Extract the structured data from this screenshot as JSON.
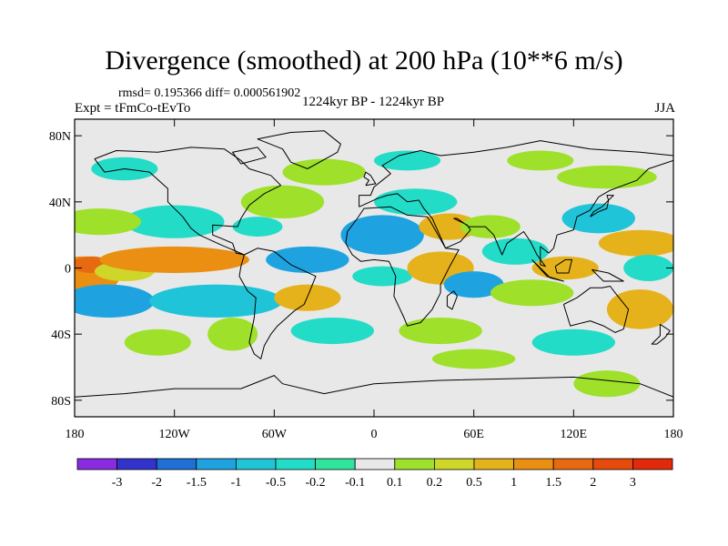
{
  "header": {
    "title": "Divergence (smoothed) at 200 hPa (10**6 m/s)",
    "stats": "rmsd= 0.195366 diff= 0.000561902",
    "experiment": "Expt = tFmCo-tEvTo",
    "period": "1224kyr BP - 1224kyr BP",
    "season": "JJA"
  },
  "axes": {
    "lat_labels": [
      "80N",
      "40N",
      "0",
      "40S",
      "80S"
    ],
    "lon_labels": [
      "180",
      "120W",
      "60W",
      "0",
      "60E",
      "120E",
      "180"
    ]
  },
  "colorbar": {
    "colors": [
      "#8a2be2",
      "#3333cc",
      "#1f6fd6",
      "#1fa3e0",
      "#20c4d8",
      "#22dcc8",
      "#2ee59b",
      "#e8e8e8",
      "#9ee02a",
      "#cfd62a",
      "#e6b21c",
      "#ea8f12",
      "#e86a10",
      "#e64a0c",
      "#e22a0a"
    ],
    "labels": [
      "-3",
      "-2",
      "-1.5",
      "-1",
      "-0.5",
      "-0.2",
      "-0.1",
      "0.1",
      "0.2",
      "0.5",
      "1",
      "1.5",
      "2",
      "3"
    ]
  },
  "map": {
    "background": "#e8e8e8",
    "blobs": [
      {
        "lon": -175,
        "lat": -5,
        "rx": 22,
        "ry": 12,
        "c": 11
      },
      {
        "lon": -170,
        "lat": 2,
        "rx": 12,
        "ry": 5,
        "c": 12
      },
      {
        "lon": -160,
        "lat": -20,
        "rx": 28,
        "ry": 10,
        "c": 3
      },
      {
        "lon": -150,
        "lat": -2,
        "rx": 18,
        "ry": 6,
        "c": 9
      },
      {
        "lon": -120,
        "lat": 5,
        "rx": 45,
        "ry": 8,
        "c": 11
      },
      {
        "lon": -95,
        "lat": -20,
        "rx": 40,
        "ry": 10,
        "c": 4
      },
      {
        "lon": -120,
        "lat": 28,
        "rx": 30,
        "ry": 10,
        "c": 5
      },
      {
        "lon": -165,
        "lat": 28,
        "rx": 25,
        "ry": 8,
        "c": 8
      },
      {
        "lon": -130,
        "lat": -45,
        "rx": 20,
        "ry": 8,
        "c": 8
      },
      {
        "lon": -85,
        "lat": -40,
        "rx": 15,
        "ry": 10,
        "c": 8
      },
      {
        "lon": -55,
        "lat": 40,
        "rx": 25,
        "ry": 10,
        "c": 8
      },
      {
        "lon": -70,
        "lat": 25,
        "rx": 15,
        "ry": 6,
        "c": 5
      },
      {
        "lon": -40,
        "lat": 5,
        "rx": 25,
        "ry": 8,
        "c": 3
      },
      {
        "lon": -40,
        "lat": -18,
        "rx": 20,
        "ry": 8,
        "c": 10
      },
      {
        "lon": -25,
        "lat": -38,
        "rx": 25,
        "ry": 8,
        "c": 5
      },
      {
        "lon": -30,
        "lat": 58,
        "rx": 25,
        "ry": 8,
        "c": 8
      },
      {
        "lon": 5,
        "lat": 20,
        "rx": 25,
        "ry": 12,
        "c": 3
      },
      {
        "lon": 5,
        "lat": -5,
        "rx": 18,
        "ry": 6,
        "c": 5
      },
      {
        "lon": 25,
        "lat": 40,
        "rx": 25,
        "ry": 8,
        "c": 5
      },
      {
        "lon": 45,
        "lat": 25,
        "rx": 18,
        "ry": 8,
        "c": 10
      },
      {
        "lon": 40,
        "lat": 0,
        "rx": 20,
        "ry": 10,
        "c": 10
      },
      {
        "lon": 60,
        "lat": -10,
        "rx": 18,
        "ry": 8,
        "c": 3
      },
      {
        "lon": 40,
        "lat": -38,
        "rx": 25,
        "ry": 8,
        "c": 8
      },
      {
        "lon": 70,
        "lat": 25,
        "rx": 18,
        "ry": 7,
        "c": 8
      },
      {
        "lon": 85,
        "lat": 10,
        "rx": 20,
        "ry": 8,
        "c": 5
      },
      {
        "lon": 95,
        "lat": -15,
        "rx": 25,
        "ry": 8,
        "c": 8
      },
      {
        "lon": 115,
        "lat": 0,
        "rx": 20,
        "ry": 7,
        "c": 10
      },
      {
        "lon": 135,
        "lat": 30,
        "rx": 22,
        "ry": 9,
        "c": 4
      },
      {
        "lon": 160,
        "lat": 15,
        "rx": 25,
        "ry": 8,
        "c": 10
      },
      {
        "lon": 165,
        "lat": 0,
        "rx": 15,
        "ry": 8,
        "c": 5
      },
      {
        "lon": 160,
        "lat": -25,
        "rx": 20,
        "ry": 12,
        "c": 10
      },
      {
        "lon": 120,
        "lat": -45,
        "rx": 25,
        "ry": 8,
        "c": 5
      },
      {
        "lon": 140,
        "lat": 55,
        "rx": 30,
        "ry": 7,
        "c": 8
      },
      {
        "lon": 60,
        "lat": -55,
        "rx": 25,
        "ry": 6,
        "c": 8
      },
      {
        "lon": 140,
        "lat": -70,
        "rx": 20,
        "ry": 8,
        "c": 8
      },
      {
        "lon": -150,
        "lat": 60,
        "rx": 20,
        "ry": 7,
        "c": 5
      },
      {
        "lon": 20,
        "lat": 65,
        "rx": 20,
        "ry": 6,
        "c": 5
      },
      {
        "lon": 100,
        "lat": 65,
        "rx": 20,
        "ry": 6,
        "c": 8
      }
    ],
    "coastlines": [
      {
        "name": "north-america",
        "points": [
          [
            -168,
            66
          ],
          [
            -155,
            71
          ],
          [
            -130,
            70
          ],
          [
            -110,
            73
          ],
          [
            -90,
            72
          ],
          [
            -80,
            65
          ],
          [
            -75,
            60
          ],
          [
            -62,
            56
          ],
          [
            -56,
            50
          ],
          [
            -66,
            45
          ],
          [
            -75,
            38
          ],
          [
            -80,
            30
          ],
          [
            -82,
            25
          ],
          [
            -97,
            26
          ],
          [
            -97,
            20
          ],
          [
            -92,
            18
          ],
          [
            -85,
            15
          ],
          [
            -83,
            9
          ],
          [
            -78,
            8
          ],
          [
            -85,
            11
          ],
          [
            -92,
            14
          ],
          [
            -105,
            20
          ],
          [
            -110,
            24
          ],
          [
            -115,
            31
          ],
          [
            -124,
            40
          ],
          [
            -124,
            48
          ],
          [
            -135,
            58
          ],
          [
            -150,
            60
          ],
          [
            -162,
            58
          ],
          [
            -168,
            66
          ]
        ]
      },
      {
        "name": "greenland",
        "points": [
          [
            -50,
            82
          ],
          [
            -30,
            83
          ],
          [
            -20,
            75
          ],
          [
            -22,
            70
          ],
          [
            -40,
            60
          ],
          [
            -50,
            64
          ],
          [
            -55,
            72
          ],
          [
            -70,
            78
          ],
          [
            -50,
            82
          ]
        ]
      },
      {
        "name": "south-america",
        "points": [
          [
            -78,
            8
          ],
          [
            -70,
            12
          ],
          [
            -60,
            10
          ],
          [
            -50,
            2
          ],
          [
            -35,
            -5
          ],
          [
            -39,
            -15
          ],
          [
            -42,
            -22
          ],
          [
            -48,
            -26
          ],
          [
            -58,
            -35
          ],
          [
            -62,
            -40
          ],
          [
            -66,
            -47
          ],
          [
            -68,
            -55
          ],
          [
            -72,
            -52
          ],
          [
            -75,
            -45
          ],
          [
            -72,
            -30
          ],
          [
            -71,
            -18
          ],
          [
            -76,
            -14
          ],
          [
            -81,
            -5
          ],
          [
            -80,
            1
          ],
          [
            -78,
            8
          ]
        ]
      },
      {
        "name": "africa",
        "points": [
          [
            -17,
            15
          ],
          [
            -16,
            22
          ],
          [
            -10,
            30
          ],
          [
            -6,
            36
          ],
          [
            10,
            37
          ],
          [
            20,
            32
          ],
          [
            32,
            31
          ],
          [
            34,
            28
          ],
          [
            43,
            12
          ],
          [
            51,
            11
          ],
          [
            45,
            0
          ],
          [
            40,
            -10
          ],
          [
            40,
            -15
          ],
          [
            35,
            -25
          ],
          [
            28,
            -33
          ],
          [
            20,
            -35
          ],
          [
            18,
            -30
          ],
          [
            12,
            -17
          ],
          [
            13,
            -5
          ],
          [
            9,
            4
          ],
          [
            0,
            5
          ],
          [
            -8,
            4
          ],
          [
            -13,
            8
          ],
          [
            -17,
            15
          ]
        ]
      },
      {
        "name": "europe-asia",
        "points": [
          [
            -9,
            37
          ],
          [
            -9,
            44
          ],
          [
            -2,
            44
          ],
          [
            0,
            49
          ],
          [
            5,
            53
          ],
          [
            10,
            57
          ],
          [
            5,
            62
          ],
          [
            15,
            68
          ],
          [
            28,
            71
          ],
          [
            40,
            68
          ],
          [
            60,
            70
          ],
          [
            80,
            73
          ],
          [
            100,
            77
          ],
          [
            130,
            72
          ],
          [
            160,
            70
          ],
          [
            180,
            68
          ]
        ]
      },
      {
        "name": "asia-south",
        "points": [
          [
            180,
            65
          ],
          [
            165,
            60
          ],
          [
            158,
            53
          ],
          [
            142,
            47
          ],
          [
            135,
            43
          ],
          [
            130,
            35
          ],
          [
            122,
            31
          ],
          [
            120,
            23
          ],
          [
            110,
            20
          ],
          [
            108,
            12
          ],
          [
            105,
            9
          ],
          [
            100,
            13
          ],
          [
            100,
            2
          ],
          [
            103,
            1
          ],
          [
            98,
            8
          ],
          [
            94,
            16
          ],
          [
            90,
            22
          ],
          [
            80,
            15
          ],
          [
            77,
            8
          ],
          [
            72,
            20
          ],
          [
            67,
            25
          ],
          [
            57,
            25
          ],
          [
            50,
            30
          ],
          [
            48,
            30
          ],
          [
            56,
            26
          ],
          [
            58,
            23
          ],
          [
            52,
            16
          ],
          [
            43,
            12
          ],
          [
            35,
            30
          ],
          [
            30,
            36
          ],
          [
            27,
            41
          ],
          [
            20,
            40
          ],
          [
            14,
            45
          ],
          [
            8,
            44
          ],
          [
            2,
            42
          ],
          [
            -9,
            37
          ]
        ]
      },
      {
        "name": "australia",
        "points": [
          [
            114,
            -22
          ],
          [
            122,
            -18
          ],
          [
            130,
            -12
          ],
          [
            137,
            -12
          ],
          [
            142,
            -11
          ],
          [
            145,
            -15
          ],
          [
            153,
            -25
          ],
          [
            150,
            -37
          ],
          [
            145,
            -39
          ],
          [
            138,
            -35
          ],
          [
            130,
            -32
          ],
          [
            118,
            -35
          ],
          [
            114,
            -22
          ]
        ]
      },
      {
        "name": "antarctica",
        "points": [
          [
            -180,
            -78
          ],
          [
            -150,
            -76
          ],
          [
            -120,
            -73
          ],
          [
            -80,
            -73
          ],
          [
            -60,
            -65
          ],
          [
            -55,
            -70
          ],
          [
            -30,
            -76
          ],
          [
            0,
            -70
          ],
          [
            40,
            -68
          ],
          [
            80,
            -67
          ],
          [
            120,
            -66
          ],
          [
            160,
            -70
          ],
          [
            180,
            -78
          ]
        ]
      },
      {
        "name": "japan",
        "points": [
          [
            130,
            31
          ],
          [
            135,
            34
          ],
          [
            140,
            36
          ],
          [
            141,
            41
          ],
          [
            140,
            44
          ],
          [
            144,
            44
          ],
          [
            140,
            40
          ],
          [
            137,
            37
          ],
          [
            132,
            34
          ],
          [
            130,
            31
          ]
        ]
      },
      {
        "name": "borneo",
        "points": [
          [
            109,
            1
          ],
          [
            115,
            5
          ],
          [
            119,
            5
          ],
          [
            117,
            -3
          ],
          [
            110,
            -3
          ],
          [
            109,
            1
          ]
        ]
      },
      {
        "name": "madagascar",
        "points": [
          [
            44,
            -17
          ],
          [
            48,
            -14
          ],
          [
            50,
            -17
          ],
          [
            47,
            -25
          ],
          [
            44,
            -23
          ],
          [
            44,
            -17
          ]
        ]
      },
      {
        "name": "sumatra-java",
        "points": [
          [
            95,
            5
          ],
          [
            104,
            -5
          ],
          [
            114,
            -8
          ],
          [
            106,
            -6
          ],
          [
            98,
            2
          ],
          [
            95,
            5
          ]
        ]
      },
      {
        "name": "new-guinea",
        "points": [
          [
            131,
            -1
          ],
          [
            141,
            -3
          ],
          [
            150,
            -8
          ],
          [
            144,
            -8
          ],
          [
            138,
            -8
          ],
          [
            131,
            -1
          ]
        ]
      },
      {
        "name": "new-zealand",
        "points": [
          [
            172,
            -34
          ],
          [
            178,
            -38
          ],
          [
            175,
            -42
          ],
          [
            170,
            -46
          ],
          [
            167,
            -46
          ],
          [
            172,
            -41
          ],
          [
            172,
            -34
          ]
        ]
      },
      {
        "name": "uk",
        "points": [
          [
            -5,
            50
          ],
          [
            1,
            51
          ],
          [
            -2,
            56
          ],
          [
            -5,
            58
          ],
          [
            -6,
            55
          ],
          [
            -3,
            53
          ],
          [
            -5,
            50
          ]
        ]
      },
      {
        "name": "baffin",
        "points": [
          [
            -80,
            63
          ],
          [
            -65,
            67
          ],
          [
            -70,
            73
          ],
          [
            -85,
            70
          ],
          [
            -80,
            63
          ]
        ]
      }
    ]
  }
}
